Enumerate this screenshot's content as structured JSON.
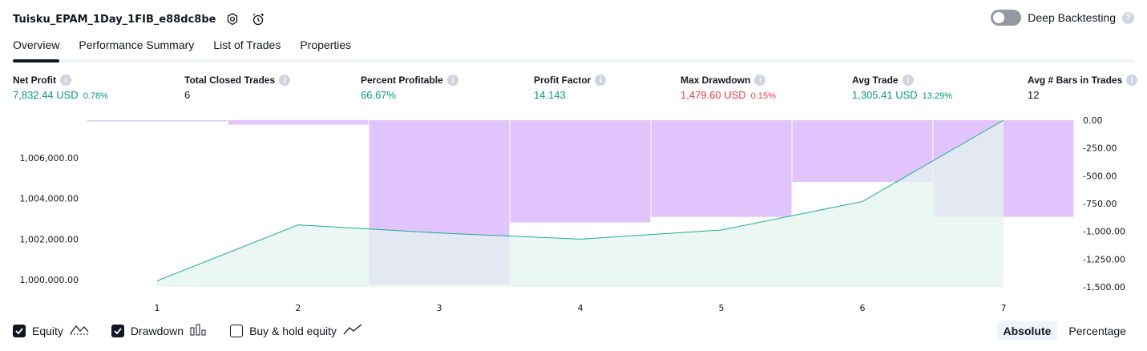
{
  "header": {
    "title": "Tuisku_EPAM_1Day_1FIB_e88dc8be",
    "settings_icon": "gear-icon",
    "alert_icon": "alarm-clock-icon"
  },
  "deep_backtesting": {
    "label": "Deep Backtesting",
    "enabled": false,
    "help": "?"
  },
  "tabs": [
    {
      "label": "Overview",
      "active": true
    },
    {
      "label": "Performance Summary",
      "active": false
    },
    {
      "label": "List of Trades",
      "active": false
    },
    {
      "label": "Properties",
      "active": false
    }
  ],
  "metrics": [
    {
      "label": "Net Profit",
      "value": "7,832.44 USD",
      "pct": "0.78%",
      "tone": "green"
    },
    {
      "label": "Total Closed Trades",
      "value": "6",
      "pct": "",
      "tone": "dark"
    },
    {
      "label": "Percent Profitable",
      "value": "66.67%",
      "pct": "",
      "tone": "green"
    },
    {
      "label": "Profit Factor",
      "value": "14.143",
      "pct": "",
      "tone": "green"
    },
    {
      "label": "Max Drawdown",
      "value": "1,479.60 USD",
      "pct": "0.15%",
      "tone": "red"
    },
    {
      "label": "Avg Trade",
      "value": "1,305.41 USD",
      "pct": "13.29%",
      "tone": "green"
    },
    {
      "label": "Avg # Bars in Trades",
      "value": "12",
      "pct": "",
      "tone": "dark"
    }
  ],
  "chart_data": {
    "type": "area",
    "x": [
      1,
      2,
      3,
      4,
      5,
      6,
      7
    ],
    "series": [
      {
        "name": "Equity",
        "axis": "left",
        "values": [
          999950,
          1002700,
          1002300,
          1002000,
          1002450,
          1003850,
          1007850
        ]
      },
      {
        "name": "Drawdown",
        "axis": "right",
        "type": "bar",
        "values": [
          0,
          -40,
          -1479.6,
          -920,
          -870,
          -555,
          -870
        ]
      }
    ],
    "left_axis": {
      "ticks": [
        "1,000,000.00",
        "1,002,000.00",
        "1,004,000.00",
        "1,006,000.00"
      ],
      "range": [
        999650,
        1007850
      ]
    },
    "right_axis": {
      "ticks": [
        "0.00",
        "-250.00",
        "-500.00",
        "-750.00",
        "-1,000.00",
        "-1,250.00",
        "-1,500.00"
      ],
      "range": [
        -1500,
        0
      ]
    },
    "x_tick_labels": [
      "1",
      "2",
      "3",
      "4",
      "5",
      "6",
      "7"
    ],
    "colors": {
      "equity_line": "#22ab94",
      "equity_fill": "#e3f4ef",
      "drawdown": "#e1c4fc"
    }
  },
  "footer": {
    "equity": {
      "label": "Equity",
      "checked": true,
      "icon": "equity-line-icon"
    },
    "drawdown": {
      "label": "Drawdown",
      "checked": true,
      "icon": "drawdown-bars-icon"
    },
    "buy_hold": {
      "label": "Buy & hold equity",
      "checked": false,
      "icon": "buy-hold-line-icon"
    },
    "scale": {
      "absolute": "Absolute",
      "percentage": "Percentage",
      "active": "absolute"
    }
  }
}
